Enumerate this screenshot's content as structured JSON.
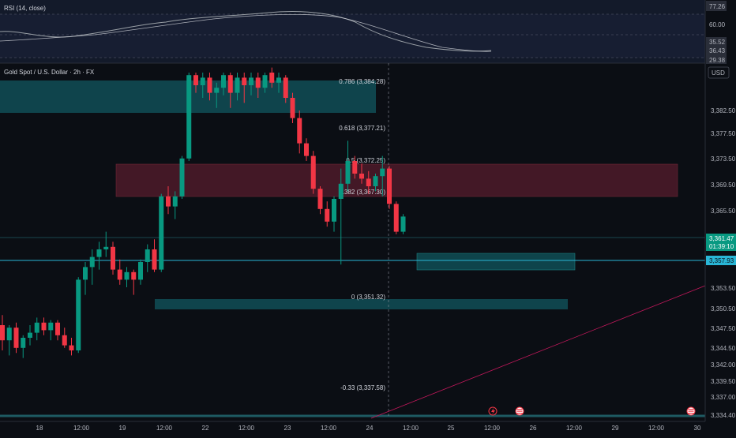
{
  "rsi": {
    "title": "RSI (14, close)",
    "labels": [
      "77.26",
      "60.00",
      "35.52",
      "36.43",
      "29.38"
    ]
  },
  "symbol": {
    "title": "Gold Spot / U.S. Dollar · 2h · FX",
    "currency": "USD"
  },
  "price_axis": {
    "ticks": [
      "3,382.50",
      "3,377.50",
      "3,373.50",
      "3,369.50",
      "3,365.50",
      "3,353.50",
      "3,350.50",
      "3,347.50",
      "3,344.50",
      "3,342.00",
      "3,339.50",
      "3,337.00",
      "3,334.40"
    ],
    "current_price": "3,361.47",
    "countdown": "01:39:10",
    "line_price": "3,357.93"
  },
  "fib_levels": [
    {
      "label": "0.786 (3,384.28)"
    },
    {
      "label": "0.618 (3,377.21)"
    },
    {
      "label": "0.5 (3,372.25)"
    },
    {
      "label": "0.382 (3,367.30)"
    },
    {
      "label": "0 (3,351.32)"
    },
    {
      "label": "-0.33 (3,337.58)"
    }
  ],
  "time_axis": {
    "ticks": [
      "18",
      "12:00",
      "19",
      "12:00",
      "22",
      "12:00",
      "23",
      "12:00",
      "24",
      "12:00",
      "25",
      "12:00",
      "26",
      "12:00",
      "29",
      "12:00",
      "30"
    ]
  },
  "colors": {
    "bull": "#089981",
    "bear": "#f23645",
    "background": "#0b0e14",
    "rsi_background": "#131a2a",
    "teal_zone": "#0f4a52",
    "red_zone": "#4a1a28",
    "trend_line": "#c2185b"
  },
  "candles": [
    {
      "o": 3340.0,
      "h": 3342.0,
      "l": 3335.0,
      "c": 3337.0
    },
    {
      "o": 3337.0,
      "h": 3340.0,
      "l": 3334.0,
      "c": 3339.5
    },
    {
      "o": 3339.5,
      "h": 3340.5,
      "l": 3334.5,
      "c": 3335.5
    },
    {
      "o": 3335.5,
      "h": 3338.0,
      "l": 3333.5,
      "c": 3337.5
    },
    {
      "o": 3337.5,
      "h": 3340.0,
      "l": 3336.0,
      "c": 3338.5
    },
    {
      "o": 3338.5,
      "h": 3341.5,
      "l": 3337.0,
      "c": 3340.5
    },
    {
      "o": 3340.5,
      "h": 3341.5,
      "l": 3338.0,
      "c": 3339.0
    },
    {
      "o": 3339.0,
      "h": 3341.0,
      "l": 3337.0,
      "c": 3340.5
    },
    {
      "o": 3340.5,
      "h": 3341.0,
      "l": 3337.0,
      "c": 3338.0
    },
    {
      "o": 3338.0,
      "h": 3339.5,
      "l": 3335.5,
      "c": 3336.0
    },
    {
      "o": 3336.0,
      "h": 3337.5,
      "l": 3334.0,
      "c": 3335.0
    },
    {
      "o": 3335.0,
      "h": 3349.5,
      "l": 3334.5,
      "c": 3349.0
    },
    {
      "o": 3349.0,
      "h": 3352.5,
      "l": 3346.0,
      "c": 3351.5
    },
    {
      "o": 3351.5,
      "h": 3355.0,
      "l": 3348.0,
      "c": 3353.5
    },
    {
      "o": 3353.5,
      "h": 3356.5,
      "l": 3351.0,
      "c": 3355.0
    },
    {
      "o": 3355.0,
      "h": 3358.5,
      "l": 3353.5,
      "c": 3355.5
    },
    {
      "o": 3355.5,
      "h": 3356.5,
      "l": 3350.0,
      "c": 3351.0
    },
    {
      "o": 3351.0,
      "h": 3353.0,
      "l": 3348.0,
      "c": 3349.0
    },
    {
      "o": 3349.0,
      "h": 3351.5,
      "l": 3347.5,
      "c": 3350.5
    },
    {
      "o": 3350.5,
      "h": 3351.0,
      "l": 3346.0,
      "c": 3349.0
    },
    {
      "o": 3349.0,
      "h": 3353.0,
      "l": 3348.0,
      "c": 3352.5
    },
    {
      "o": 3352.5,
      "h": 3356.0,
      "l": 3350.5,
      "c": 3355.0
    },
    {
      "o": 3355.0,
      "h": 3357.0,
      "l": 3350.5,
      "c": 3351.0
    },
    {
      "o": 3351.0,
      "h": 3366.0,
      "l": 3350.5,
      "c": 3365.5
    },
    {
      "o": 3365.5,
      "h": 3367.5,
      "l": 3362.0,
      "c": 3363.5
    },
    {
      "o": 3363.5,
      "h": 3366.5,
      "l": 3361.0,
      "c": 3365.5
    },
    {
      "o": 3365.5,
      "h": 3373.5,
      "l": 3365.0,
      "c": 3373.0
    },
    {
      "o": 3373.0,
      "h": 3390.0,
      "l": 3372.5,
      "c": 3389.5
    },
    {
      "o": 3389.5,
      "h": 3390.0,
      "l": 3386.0,
      "c": 3387.5
    },
    {
      "o": 3387.5,
      "h": 3390.0,
      "l": 3385.0,
      "c": 3389.0
    },
    {
      "o": 3389.0,
      "h": 3390.0,
      "l": 3384.5,
      "c": 3386.0
    },
    {
      "o": 3386.0,
      "h": 3388.0,
      "l": 3383.0,
      "c": 3387.0
    },
    {
      "o": 3387.0,
      "h": 3390.0,
      "l": 3385.5,
      "c": 3389.5
    },
    {
      "o": 3389.5,
      "h": 3390.0,
      "l": 3383.0,
      "c": 3386.0
    },
    {
      "o": 3386.0,
      "h": 3390.0,
      "l": 3384.5,
      "c": 3389.0
    },
    {
      "o": 3389.0,
      "h": 3390.0,
      "l": 3384.0,
      "c": 3387.5
    },
    {
      "o": 3387.5,
      "h": 3390.0,
      "l": 3385.5,
      "c": 3389.0
    },
    {
      "o": 3389.0,
      "h": 3390.0,
      "l": 3385.0,
      "c": 3387.0
    },
    {
      "o": 3387.0,
      "h": 3390.0,
      "l": 3386.0,
      "c": 3389.5
    },
    {
      "o": 3390.0,
      "h": 3391.0,
      "l": 3387.0,
      "c": 3388.0
    },
    {
      "o": 3388.0,
      "h": 3390.0,
      "l": 3386.0,
      "c": 3389.0
    },
    {
      "o": 3389.0,
      "h": 3389.5,
      "l": 3384.0,
      "c": 3385.0
    },
    {
      "o": 3385.0,
      "h": 3386.0,
      "l": 3380.0,
      "c": 3381.0
    },
    {
      "o": 3381.0,
      "h": 3382.5,
      "l": 3374.0,
      "c": 3376.0
    },
    {
      "o": 3376.0,
      "h": 3377.0,
      "l": 3372.5,
      "c": 3373.5
    },
    {
      "o": 3373.5,
      "h": 3374.5,
      "l": 3366.0,
      "c": 3367.0
    },
    {
      "o": 3367.0,
      "h": 3367.5,
      "l": 3362.0,
      "c": 3363.0
    },
    {
      "o": 3363.0,
      "h": 3364.5,
      "l": 3359.5,
      "c": 3360.5
    },
    {
      "o": 3360.5,
      "h": 3365.5,
      "l": 3358.5,
      "c": 3365.0
    },
    {
      "o": 3365.0,
      "h": 3371.0,
      "l": 3352.0,
      "c": 3368.0
    },
    {
      "o": 3368.0,
      "h": 3376.5,
      "l": 3366.5,
      "c": 3372.5
    },
    {
      "o": 3372.5,
      "h": 3373.5,
      "l": 3369.0,
      "c": 3370.0
    },
    {
      "o": 3370.0,
      "h": 3372.0,
      "l": 3368.0,
      "c": 3369.0
    },
    {
      "o": 3369.0,
      "h": 3370.5,
      "l": 3366.0,
      "c": 3367.5
    },
    {
      "o": 3367.5,
      "h": 3370.0,
      "l": 3366.5,
      "c": 3369.5
    },
    {
      "o": 3369.5,
      "h": 3373.5,
      "l": 3365.5,
      "c": 3371.0
    },
    {
      "o": 3371.0,
      "h": 3371.5,
      "l": 3363.0,
      "c": 3364.0
    },
    {
      "o": 3364.0,
      "h": 3364.5,
      "l": 3358.0,
      "c": 3358.5
    },
    {
      "o": 3358.5,
      "h": 3362.0,
      "l": 3358.0,
      "c": 3361.5
    }
  ]
}
